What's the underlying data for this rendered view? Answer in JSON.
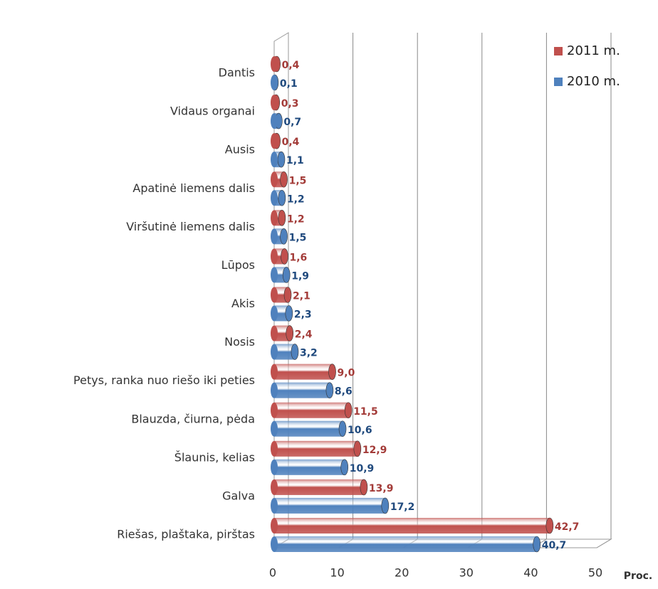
{
  "chart_data": {
    "type": "bar",
    "orientation": "horizontal",
    "x_label": "Proc.",
    "categories": [
      "Dantis",
      "Vidaus organai",
      "Ausis",
      "Apatinė liemens dalis",
      "Viršutinė liemens dalis",
      "Lūpos",
      "Akis",
      "Nosis",
      "Petys, ranka nuo riešo iki peties",
      "Blauzda, čiurna, pėda",
      "Šlaunis, kelias",
      "Galva",
      "Riešas, plaštaka, pirštas"
    ],
    "series": [
      {
        "name": "2011 m.",
        "color": "#c0504d",
        "label_color": "#a33b38",
        "values": [
          0.4,
          0.3,
          0.4,
          1.5,
          1.2,
          1.6,
          2.1,
          2.4,
          9.0,
          11.5,
          12.9,
          13.9,
          42.7
        ],
        "value_labels": [
          "0,4",
          "0,3",
          "0,4",
          "1,5",
          "1,2",
          "1,6",
          "2,1",
          "2,4",
          "9,0",
          "11,5",
          "12,9",
          "13,9",
          "42,7"
        ]
      },
      {
        "name": "2010 m.",
        "color": "#4f81bd",
        "label_color": "#1f497d",
        "values": [
          0.1,
          0.7,
          1.1,
          1.2,
          1.5,
          1.9,
          2.3,
          3.2,
          8.6,
          10.6,
          10.9,
          17.2,
          40.7
        ],
        "value_labels": [
          "0,1",
          "0,7",
          "1,1",
          "1,2",
          "1,5",
          "1,9",
          "2,3",
          "3,2",
          "8,6",
          "10,6",
          "10,9",
          "17,2",
          "40,7"
        ]
      }
    ],
    "xlim": [
      0,
      50
    ],
    "xticks": [
      0,
      10,
      20,
      30,
      40,
      50
    ],
    "grid": true,
    "legend": "top-right"
  }
}
